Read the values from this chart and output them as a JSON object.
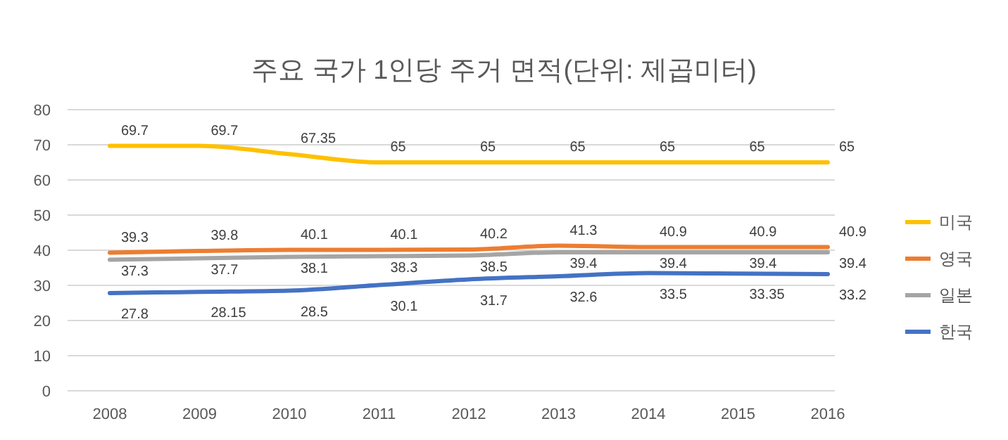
{
  "chart_data": {
    "type": "line",
    "title": "주요 국가 1인당 주거 면적(단위: 제곱미터)",
    "categories": [
      "2008",
      "2009",
      "2010",
      "2011",
      "2012",
      "2013",
      "2014",
      "2015",
      "2016"
    ],
    "series": [
      {
        "name": "미국",
        "color": "#ffc000",
        "values": [
          69.7,
          69.7,
          67.35,
          65,
          65,
          65,
          65,
          65,
          65
        ]
      },
      {
        "name": "영국",
        "color": "#ed7d31",
        "values": [
          39.3,
          39.8,
          40.1,
          40.1,
          40.2,
          41.3,
          40.9,
          40.9,
          40.9
        ]
      },
      {
        "name": "일본",
        "color": "#a5a5a5",
        "values": [
          37.3,
          37.7,
          38.1,
          38.3,
          38.5,
          39.4,
          39.4,
          39.4,
          39.4
        ]
      },
      {
        "name": "한국",
        "color": "#4472c4",
        "values": [
          27.8,
          28.15,
          28.5,
          30.1,
          31.7,
          32.6,
          33.5,
          33.35,
          33.2
        ]
      }
    ],
    "ylim": [
      0,
      80
    ],
    "yticks": [
      0,
      10,
      20,
      30,
      40,
      50,
      60,
      70,
      80
    ],
    "grid": "y",
    "legend": "right",
    "data_labels": true,
    "marker": "none",
    "line_style": "solid"
  }
}
